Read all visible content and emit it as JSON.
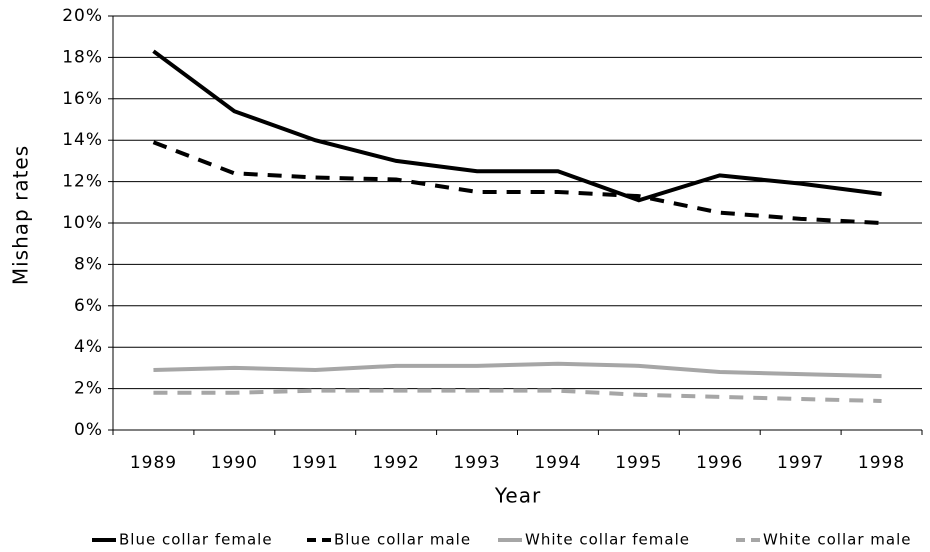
{
  "chart_data": {
    "type": "line",
    "x_label": "Year",
    "y_label": "Mishap rates",
    "categories": [
      "1989",
      "1990",
      "1991",
      "1992",
      "1993",
      "1994",
      "1995",
      "1996",
      "1997",
      "1998"
    ],
    "series": [
      {
        "name": "Blue collar female",
        "color": "#000000",
        "dashed": false,
        "values": [
          18.3,
          15.4,
          14.0,
          13.0,
          12.5,
          12.5,
          11.1,
          12.3,
          11.9,
          11.4
        ]
      },
      {
        "name": "Blue collar male",
        "color": "#000000",
        "dashed": true,
        "values": [
          13.9,
          12.4,
          12.2,
          12.1,
          11.5,
          11.5,
          11.3,
          10.5,
          10.2,
          10.0
        ]
      },
      {
        "name": "White collar female",
        "color": "#a6a6a6",
        "dashed": false,
        "values": [
          2.9,
          3.0,
          2.9,
          3.1,
          3.1,
          3.2,
          3.1,
          2.8,
          2.7,
          2.6
        ]
      },
      {
        "name": "White collar male",
        "color": "#a6a6a6",
        "dashed": true,
        "values": [
          1.8,
          1.8,
          1.9,
          1.9,
          1.9,
          1.9,
          1.7,
          1.6,
          1.5,
          1.4
        ]
      }
    ],
    "ylim": [
      0,
      20
    ],
    "yticks": [
      {
        "value": 0,
        "label": "0%"
      },
      {
        "value": 2,
        "label": "2%"
      },
      {
        "value": 4,
        "label": "4%"
      },
      {
        "value": 6,
        "label": "6%"
      },
      {
        "value": 8,
        "label": "8%"
      },
      {
        "value": 10,
        "label": "10%"
      },
      {
        "value": 12,
        "label": "12%"
      },
      {
        "value": 14,
        "label": "14%"
      },
      {
        "value": 16,
        "label": "16%"
      },
      {
        "value": 18,
        "label": "18%"
      },
      {
        "value": 20,
        "label": "20%"
      }
    ],
    "grid": true,
    "legend": "bottom"
  }
}
